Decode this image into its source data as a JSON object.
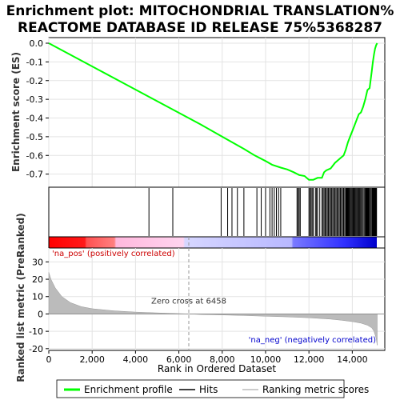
{
  "chart_data": {
    "type": "line",
    "title_line1": "Enrichment plot: MITOCHONDRIAL TRANSLATION%",
    "title_line2": "REACTOME DATABASE ID RELEASE 75%5368287",
    "es_ylabel": "Enrichment score (ES)",
    "rank_ylabel": "Ranked list metric (PreRanked)",
    "xlabel": "Rank in Ordered Dataset",
    "xlim": [
      0,
      15500
    ],
    "es_ylim": [
      -0.77,
      0.03
    ],
    "rank_ylim": [
      -21,
      38
    ],
    "x_ticks": [
      0,
      2000,
      4000,
      6000,
      8000,
      10000,
      12000,
      14000
    ],
    "x_tick_labels": [
      "0",
      "2,000",
      "4,000",
      "6,000",
      "8,000",
      "10,000",
      "12,000",
      "14,000"
    ],
    "es_ticks": [
      0.0,
      -0.1,
      -0.2,
      -0.3,
      -0.4,
      -0.5,
      -0.6,
      -0.7
    ],
    "es_tick_labels": [
      "0.0",
      "-0.1",
      "-0.2",
      "-0.3",
      "-0.4",
      "-0.5",
      "-0.6",
      "-0.7"
    ],
    "rank_ticks": [
      30,
      20,
      10,
      0,
      -10,
      -20
    ],
    "rank_tick_labels": [
      "30",
      "20",
      "10",
      "0",
      "-10",
      "-20"
    ],
    "es_curve": {
      "x": [
        0,
        1000,
        2000,
        3000,
        4000,
        5000,
        6000,
        7000,
        8000,
        9000,
        9500,
        10000,
        10300,
        10700,
        11000,
        11300,
        11550,
        11800,
        12000,
        12200,
        12400,
        12600,
        12700,
        12800,
        13000,
        13200,
        13400,
        13600,
        13700,
        13800,
        13900,
        14000,
        14100,
        14200,
        14300,
        14400,
        14500,
        14600,
        14700,
        14800,
        14900,
        14950,
        15000,
        15050,
        15100,
        15150
      ],
      "y": [
        0.0,
        -0.062,
        -0.124,
        -0.186,
        -0.248,
        -0.31,
        -0.372,
        -0.434,
        -0.5,
        -0.565,
        -0.6,
        -0.63,
        -0.65,
        -0.665,
        -0.675,
        -0.69,
        -0.705,
        -0.71,
        -0.73,
        -0.73,
        -0.72,
        -0.72,
        -0.69,
        -0.68,
        -0.67,
        -0.64,
        -0.62,
        -0.6,
        -0.57,
        -0.53,
        -0.5,
        -0.47,
        -0.44,
        -0.41,
        -0.38,
        -0.37,
        -0.34,
        -0.3,
        -0.25,
        -0.24,
        -0.15,
        -0.1,
        -0.06,
        -0.03,
        -0.01,
        0.0
      ]
    },
    "hits": [
      4620,
      5720,
      7950,
      8250,
      8450,
      8700,
      9000,
      9600,
      9800,
      10000,
      10200,
      10300,
      10400,
      10500,
      10600,
      10700,
      11450,
      11500,
      11550,
      11600,
      12000,
      12050,
      12100,
      12150,
      12200,
      12300,
      12350,
      12400,
      12500,
      12600,
      12650,
      12700,
      12750,
      12800,
      12850,
      12900,
      12950,
      13000,
      13050,
      13100,
      13150,
      13200,
      13250,
      13300,
      13350,
      13400,
      13450,
      13500,
      13550,
      13600,
      13650,
      13700,
      13720,
      13740,
      13760,
      13780,
      13800,
      13820,
      13850,
      13880,
      13920,
      13960,
      14000,
      14040,
      14080,
      14120,
      14160,
      14200,
      14240,
      14280,
      14320,
      14360,
      14400,
      14450,
      14500,
      14550,
      14600,
      14620,
      14640,
      14660,
      14680,
      14700,
      14720,
      14740,
      14760,
      14780,
      14800,
      14850,
      14900,
      14920,
      14940,
      14960,
      14980,
      15000,
      15020,
      15040,
      15060,
      15080,
      15100,
      15120
    ],
    "ranked_metric": {
      "x": [
        0,
        100,
        300,
        600,
        1000,
        1500,
        2000,
        3000,
        4000,
        5000,
        6000,
        6458,
        7000,
        8000,
        9000,
        10000,
        11000,
        12000,
        13000,
        13500,
        14000,
        14400,
        14700,
        14900,
        15000,
        15100,
        15150
      ],
      "y": [
        24,
        20,
        15,
        10,
        6.5,
        4.2,
        3.0,
        1.8,
        1.1,
        0.6,
        0.2,
        0.0,
        -0.3,
        -0.6,
        -0.9,
        -1.3,
        -1.7,
        -2.2,
        -3.0,
        -3.6,
        -4.4,
        -5.3,
        -6.5,
        -8.0,
        -10.0,
        -14.0,
        -18.0
      ]
    },
    "zero_cross": 6458,
    "zero_cross_label": "Zero cross at 6458",
    "pos_label": "'na_pos' (positively correlated)",
    "neg_label": "'na_neg' (negatively correlated)",
    "legend": [
      {
        "label": "Enrichment profile",
        "color": "#00ff00"
      },
      {
        "label": "Hits",
        "color": "#000000"
      },
      {
        "label": "Ranking metric scores",
        "color": "#bbbbbb"
      }
    ],
    "colors": {
      "es_line": "#00ff00",
      "pos_text": "#cc0000",
      "neg_text": "#0000cc",
      "metric_fill": "#bbbbbb"
    }
  }
}
